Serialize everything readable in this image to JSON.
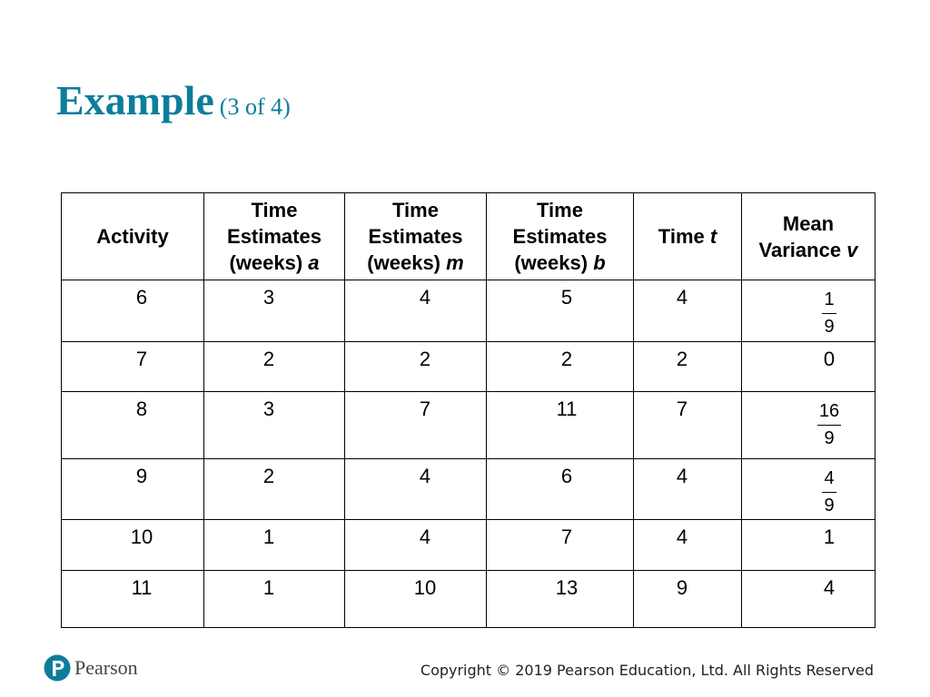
{
  "colors": {
    "title_teal": "#0d7d9c",
    "logo_teal": "#0d7d9c"
  },
  "slide": {
    "title": "Example",
    "subtitle": "(3 of 4)"
  },
  "table": {
    "headers": [
      {
        "lines": [
          "Activity"
        ],
        "italic_var": ""
      },
      {
        "lines": [
          "Time",
          "Estimates",
          "(weeks)"
        ],
        "italic_var": "a"
      },
      {
        "lines": [
          "Time",
          "Estimates",
          "(weeks)"
        ],
        "italic_var": "m"
      },
      {
        "lines": [
          "Time",
          "Estimates",
          "(weeks)"
        ],
        "italic_var": "b"
      },
      {
        "lines": [
          "Time"
        ],
        "italic_var": "t"
      },
      {
        "lines": [
          "Mean",
          "Variance"
        ],
        "italic_var": "v"
      }
    ],
    "rows": [
      {
        "activity": "6",
        "a": "3",
        "m": "4",
        "b": "5",
        "t": "4",
        "v": {
          "numerator": "1",
          "denominator": "9"
        }
      },
      {
        "activity": "7",
        "a": "2",
        "m": "2",
        "b": "2",
        "t": "2",
        "v": "0"
      },
      {
        "activity": "8",
        "a": "3",
        "m": "7",
        "b": "11",
        "t": "7",
        "v": {
          "numerator": "16",
          "denominator": "9"
        }
      },
      {
        "activity": "9",
        "a": "2",
        "m": "4",
        "b": "6",
        "t": "4",
        "v": {
          "numerator": "4",
          "denominator": "9"
        }
      },
      {
        "activity": "10",
        "a": "1",
        "m": "4",
        "b": "7",
        "t": "4",
        "v": "1"
      },
      {
        "activity": "11",
        "a": "1",
        "m": "10",
        "b": "13",
        "t": "9",
        "v": "4"
      }
    ]
  },
  "footer": {
    "logo_text": "Pearson",
    "logo_icon": "pearson-p-icon",
    "copyright": "Copyright © 2019 Pearson Education, Ltd. All Rights Reserved"
  }
}
